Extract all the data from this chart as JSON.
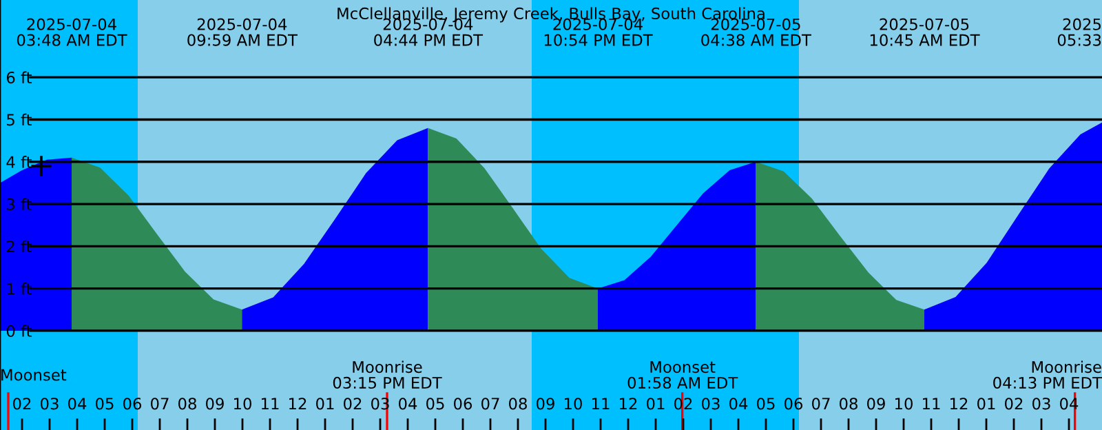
{
  "chart_data": {
    "type": "area",
    "title": "McClellanville, Jeremy Creek, Bulls Bay, South Carolina",
    "xlim": [
      "2025-07-04T01:12",
      "2025-07-05T17:12"
    ],
    "ylim": [
      -2.35,
      7.83
    ],
    "yticks": [
      {
        "value": 0,
        "label": "0 ft"
      },
      {
        "value": 1,
        "label": "1 ft"
      },
      {
        "value": 2,
        "label": "2 ft"
      },
      {
        "value": 3,
        "label": "3 ft"
      },
      {
        "value": 4,
        "label": "4 ft"
      },
      {
        "value": 5,
        "label": "5 ft"
      },
      {
        "value": 6,
        "label": "6 ft"
      }
    ],
    "xticks": [
      {
        "value": "2025-07-04T02:00",
        "label": "02"
      },
      {
        "value": "2025-07-04T03:00",
        "label": "03"
      },
      {
        "value": "2025-07-04T04:00",
        "label": "04"
      },
      {
        "value": "2025-07-04T05:00",
        "label": "05"
      },
      {
        "value": "2025-07-04T06:00",
        "label": "06"
      },
      {
        "value": "2025-07-04T07:00",
        "label": "07"
      },
      {
        "value": "2025-07-04T08:00",
        "label": "08"
      },
      {
        "value": "2025-07-04T09:00",
        "label": "09"
      },
      {
        "value": "2025-07-04T10:00",
        "label": "10"
      },
      {
        "value": "2025-07-04T11:00",
        "label": "11"
      },
      {
        "value": "2025-07-04T12:00",
        "label": "12"
      },
      {
        "value": "2025-07-04T13:00",
        "label": "01"
      },
      {
        "value": "2025-07-04T14:00",
        "label": "02"
      },
      {
        "value": "2025-07-04T15:00",
        "label": "03"
      },
      {
        "value": "2025-07-04T16:00",
        "label": "04"
      },
      {
        "value": "2025-07-04T17:00",
        "label": "05"
      },
      {
        "value": "2025-07-04T18:00",
        "label": "06"
      },
      {
        "value": "2025-07-04T19:00",
        "label": "07"
      },
      {
        "value": "2025-07-04T20:00",
        "label": "08"
      },
      {
        "value": "2025-07-04T21:00",
        "label": "09"
      },
      {
        "value": "2025-07-04T22:00",
        "label": "10"
      },
      {
        "value": "2025-07-04T23:00",
        "label": "11"
      },
      {
        "value": "2025-07-05T00:00",
        "label": "12"
      },
      {
        "value": "2025-07-05T01:00",
        "label": "01"
      },
      {
        "value": "2025-07-05T02:00",
        "label": "02"
      },
      {
        "value": "2025-07-05T03:00",
        "label": "03"
      },
      {
        "value": "2025-07-05T04:00",
        "label": "04"
      },
      {
        "value": "2025-07-05T05:00",
        "label": "05"
      },
      {
        "value": "2025-07-05T06:00",
        "label": "06"
      },
      {
        "value": "2025-07-05T07:00",
        "label": "07"
      },
      {
        "value": "2025-07-05T08:00",
        "label": "08"
      },
      {
        "value": "2025-07-05T09:00",
        "label": "09"
      },
      {
        "value": "2025-07-05T10:00",
        "label": "10"
      },
      {
        "value": "2025-07-05T11:00",
        "label": "11"
      },
      {
        "value": "2025-07-05T12:00",
        "label": "12"
      },
      {
        "value": "2025-07-05T13:00",
        "label": "01"
      },
      {
        "value": "2025-07-05T14:00",
        "label": "02"
      },
      {
        "value": "2025-07-05T15:00",
        "label": "03"
      },
      {
        "value": "2025-07-05T16:00",
        "label": "04"
      }
    ],
    "grid": "y",
    "bands": [
      {
        "axis": "x",
        "from": "2025-07-04T01:12",
        "to": "2025-07-04T06:12",
        "color": "#00bfff"
      },
      {
        "axis": "x",
        "from": "2025-07-04T06:12",
        "to": "2025-07-04T20:30",
        "color": "#87ceeb"
      },
      {
        "axis": "x",
        "from": "2025-07-04T20:30",
        "to": "2025-07-05T06:12",
        "color": "#00bfff"
      },
      {
        "axis": "x",
        "from": "2025-07-05T06:12",
        "to": "2025-07-05T17:12",
        "color": "#87ceeb"
      }
    ],
    "series": [
      {
        "color": "#0000ff",
        "x": [
          "2025-07-04T01:12",
          "2025-07-04T02:00",
          "2025-07-04T02:54",
          "2025-07-04T03:48"
        ],
        "values": [
          3.5,
          3.8,
          4.05,
          4.1
        ]
      },
      {
        "color": "#2e8b57",
        "x": [
          "2025-07-04T03:48",
          "2025-07-04T04:50",
          "2025-07-04T05:52",
          "2025-07-04T06:53",
          "2025-07-04T07:55",
          "2025-07-04T08:57",
          "2025-07-04T09:59"
        ],
        "values": [
          4.1,
          3.86,
          3.2,
          2.3,
          1.4,
          0.74,
          0.5
        ]
      },
      {
        "color": "#0000ff",
        "x": [
          "2025-07-04T09:59",
          "2025-07-04T11:07",
          "2025-07-04T12:14",
          "2025-07-04T13:22",
          "2025-07-04T14:29",
          "2025-07-04T15:37",
          "2025-07-04T16:44"
        ],
        "values": [
          0.5,
          0.79,
          1.58,
          2.65,
          3.73,
          4.51,
          4.8
        ]
      },
      {
        "color": "#2e8b57",
        "x": [
          "2025-07-04T16:44",
          "2025-07-04T17:46",
          "2025-07-04T18:47",
          "2025-07-04T19:49",
          "2025-07-04T20:50",
          "2025-07-04T21:52",
          "2025-07-04T22:54"
        ],
        "values": [
          4.8,
          4.55,
          3.85,
          2.9,
          1.95,
          1.25,
          1.0
        ]
      },
      {
        "color": "#0000ff",
        "x": [
          "2025-07-04T22:54",
          "2025-07-04T23:52",
          "2025-07-05T00:49",
          "2025-07-05T01:46",
          "2025-07-05T02:43",
          "2025-07-05T03:41",
          "2025-07-05T04:38"
        ],
        "values": [
          1.0,
          1.2,
          1.75,
          2.5,
          3.25,
          3.8,
          4.0
        ]
      },
      {
        "color": "#2e8b57",
        "x": [
          "2025-07-05T04:38",
          "2025-07-05T05:39",
          "2025-07-05T06:40",
          "2025-07-05T07:41",
          "2025-07-05T08:43",
          "2025-07-05T09:44",
          "2025-07-05T10:45"
        ],
        "values": [
          4.0,
          3.77,
          3.13,
          2.25,
          1.38,
          0.73,
          0.5
        ]
      },
      {
        "color": "#0000ff",
        "x": [
          "2025-07-05T10:45",
          "2025-07-05T11:53",
          "2025-07-05T13:01",
          "2025-07-05T14:09",
          "2025-07-05T15:17",
          "2025-07-05T16:25",
          "2025-07-05T17:12"
        ],
        "values": [
          0.5,
          0.8,
          1.61,
          2.73,
          3.84,
          4.65,
          4.93
        ]
      },
      {
        "type": "scatter",
        "color": "#000000",
        "marker": "cross",
        "x": [
          "2025-07-04T02:42"
        ],
        "values": [
          3.9
        ]
      }
    ],
    "ref_lines": [
      {
        "axis": "x",
        "value": "2025-07-04T01:30",
        "label": "Moonset",
        "color": "#ff0000"
      },
      {
        "axis": "x",
        "value": "2025-07-04T15:15",
        "label": "Moonrise\n03:15 PM EDT",
        "color": "#ff0000"
      },
      {
        "axis": "x",
        "value": "2025-07-05T01:58",
        "label": "Moonset\n01:58 AM EDT",
        "color": "#ff0000"
      },
      {
        "axis": "x",
        "value": "2025-07-05T16:13",
        "label": "Moonrise\n04:13 PM EDT",
        "color": "#ff0000"
      }
    ],
    "annotations": [
      "2025-07-04\n03:48 AM EDT",
      "2025-07-04\n09:59 AM EDT",
      "2025-07-04\n04:44 PM EDT",
      "2025-07-04\n10:54 PM EDT",
      "2025-07-05\n04:38 AM EDT",
      "2025-07-05\n10:45 AM EDT",
      "2025\n05:33"
    ]
  }
}
